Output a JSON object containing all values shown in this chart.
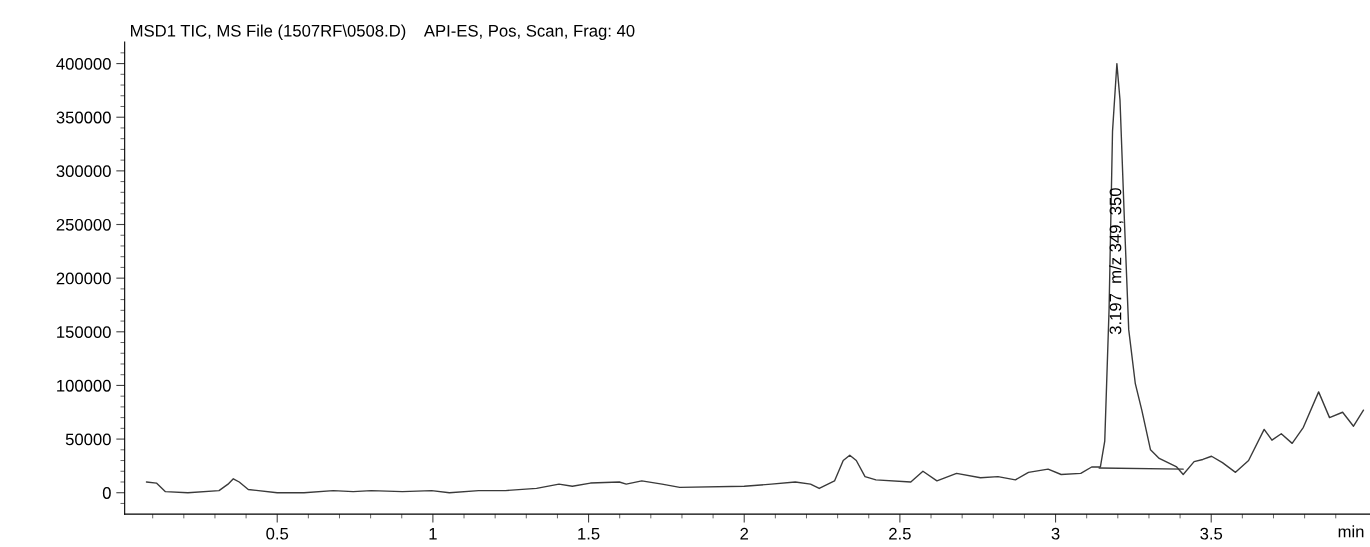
{
  "chart_data": {
    "type": "line",
    "title": "MSD1 TIC, MS File (1507RF\\0508.D)    API-ES, Pos, Scan, Frag: 40",
    "xlabel": "min",
    "series": [
      {
        "color": "#3a3a3a",
        "x": [
          0.08,
          0.112,
          0.141,
          0.213,
          0.313,
          0.342,
          0.359,
          0.378,
          0.407,
          0.5,
          0.586,
          0.68,
          0.744,
          0.802,
          0.902,
          0.996,
          1.053,
          1.147,
          1.233,
          1.333,
          1.405,
          1.448,
          1.506,
          1.599,
          1.621,
          1.671,
          1.736,
          1.793,
          2.0,
          2.087,
          2.164,
          2.213,
          2.241,
          2.29,
          2.318,
          2.339,
          2.36,
          2.388,
          2.423,
          2.535,
          2.574,
          2.619,
          2.682,
          2.759,
          2.815,
          2.871,
          2.913,
          2.976,
          3.018,
          3.081,
          3.116,
          3.144,
          3.158,
          3.172,
          3.183,
          3.197,
          3.207,
          3.221,
          3.235,
          3.256,
          3.277,
          3.305,
          3.333,
          3.389,
          3.41,
          3.445,
          3.473,
          3.501,
          3.536,
          3.578,
          3.62,
          3.67,
          3.695,
          3.725,
          3.76,
          3.796,
          3.845,
          3.88,
          3.922,
          3.957,
          3.989
        ],
        "values": [
          10000,
          9000,
          1000,
          0,
          2000,
          8000,
          13000,
          10000,
          3000,
          0,
          0,
          2000,
          1000,
          2000,
          1000,
          2000,
          0,
          2000,
          2000,
          4000,
          8000,
          6000,
          9000,
          10000,
          8000,
          11000,
          8000,
          5000,
          6000,
          8000,
          10000,
          8000,
          4000,
          11000,
          30000,
          35000,
          30000,
          15000,
          12000,
          10000,
          20000,
          11000,
          18000,
          14000,
          15000,
          12000,
          19000,
          22000,
          17000,
          18000,
          24000,
          24000,
          48000,
          172000,
          337000,
          400000,
          366000,
          255000,
          152000,
          102000,
          77000,
          40000,
          32000,
          24000,
          17000,
          29000,
          31000,
          34000,
          28000,
          19000,
          30000,
          59000,
          49000,
          55000,
          46000,
          61000,
          94000,
          70000,
          75000,
          62000,
          77000
        ]
      },
      {
        "color": "#3a3a3a",
        "x": [
          3.14,
          3.41
        ],
        "values": [
          23000,
          22000
        ]
      }
    ],
    "annotations": [
      "3.197  m/z 349, 350"
    ],
    "xlim": [
      0.01,
      4.01
    ],
    "xticks": [
      {
        "value": 0.1,
        "label": null
      },
      {
        "value": 0.2,
        "label": null
      },
      {
        "value": 0.3,
        "label": null
      },
      {
        "value": 0.4,
        "label": null
      },
      0.5,
      {
        "value": 0.6,
        "label": null
      },
      {
        "value": 0.7,
        "label": null
      },
      {
        "value": 0.8,
        "label": null
      },
      {
        "value": 0.9,
        "label": null
      },
      1,
      {
        "value": 1.1,
        "label": null
      },
      {
        "value": 1.2,
        "label": null
      },
      {
        "value": 1.3,
        "label": null
      },
      {
        "value": 1.4,
        "label": null
      },
      1.5,
      {
        "value": 1.6,
        "label": null
      },
      {
        "value": 1.7,
        "label": null
      },
      {
        "value": 1.8,
        "label": null
      },
      {
        "value": 1.9,
        "label": null
      },
      2,
      {
        "value": 2.1,
        "label": null
      },
      {
        "value": 2.2,
        "label": null
      },
      {
        "value": 2.3,
        "label": null
      },
      {
        "value": 2.4,
        "label": null
      },
      2.5,
      {
        "value": 2.6,
        "label": null
      },
      {
        "value": 2.7,
        "label": null
      },
      {
        "value": 2.8,
        "label": null
      },
      {
        "value": 2.9,
        "label": null
      },
      3,
      {
        "value": 3.1,
        "label": null
      },
      {
        "value": 3.2,
        "label": null
      },
      {
        "value": 3.3,
        "label": null
      },
      {
        "value": 3.4,
        "label": null
      },
      3.5,
      {
        "value": 3.6,
        "label": null
      },
      {
        "value": 3.7,
        "label": null
      },
      {
        "value": 3.8,
        "label": null
      },
      {
        "value": 3.9,
        "label": null
      }
    ],
    "ylim": [
      -20000,
      420000
    ],
    "yticks": [
      {
        "value": -10000,
        "label": null
      },
      0,
      {
        "value": 10000,
        "label": null
      },
      {
        "value": 20000,
        "label": null
      },
      {
        "value": 30000,
        "label": null
      },
      {
        "value": 40000,
        "label": null
      },
      50000,
      {
        "value": 60000,
        "label": null
      },
      {
        "value": 70000,
        "label": null
      },
      {
        "value": 80000,
        "label": null
      },
      {
        "value": 90000,
        "label": null
      },
      100000,
      {
        "value": 110000,
        "label": null
      },
      {
        "value": 120000,
        "label": null
      },
      {
        "value": 130000,
        "label": null
      },
      {
        "value": 140000,
        "label": null
      },
      150000,
      {
        "value": 160000,
        "label": null
      },
      {
        "value": 170000,
        "label": null
      },
      {
        "value": 180000,
        "label": null
      },
      {
        "value": 190000,
        "label": null
      },
      200000,
      {
        "value": 210000,
        "label": null
      },
      {
        "value": 220000,
        "label": null
      },
      {
        "value": 230000,
        "label": null
      },
      {
        "value": 240000,
        "label": null
      },
      250000,
      {
        "value": 260000,
        "label": null
      },
      {
        "value": 270000,
        "label": null
      },
      {
        "value": 280000,
        "label": null
      },
      {
        "value": 290000,
        "label": null
      },
      300000,
      {
        "value": 310000,
        "label": null
      },
      {
        "value": 320000,
        "label": null
      },
      {
        "value": 330000,
        "label": null
      },
      {
        "value": 340000,
        "label": null
      },
      350000,
      {
        "value": 360000,
        "label": null
      },
      {
        "value": 370000,
        "label": null
      },
      {
        "value": 380000,
        "label": null
      },
      {
        "value": 390000,
        "label": null
      },
      400000,
      {
        "value": 410000,
        "label": null
      }
    ],
    "grid": false
  }
}
